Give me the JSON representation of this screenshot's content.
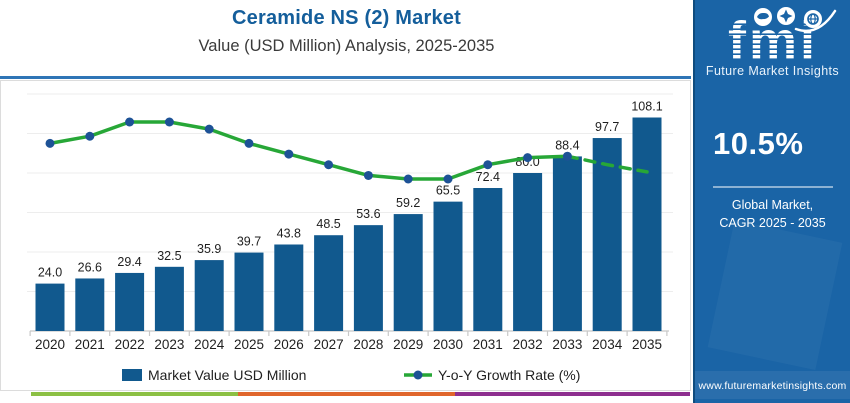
{
  "header": {
    "title": "Ceramide NS (2) Market",
    "subtitle": "Value (USD Million) Analysis, 2025-2035"
  },
  "chart_data": {
    "type": "bar",
    "title": "Ceramide NS (2) Market",
    "subtitle": "Value (USD Million) Analysis, 2025-2035",
    "categories": [
      "2020",
      "2021",
      "2022",
      "2023",
      "2024",
      "2025",
      "2026",
      "2027",
      "2028",
      "2029",
      "2030",
      "2031",
      "2032",
      "2033",
      "2034",
      "2035"
    ],
    "series": [
      {
        "name": "Market Value USD Million",
        "type": "bar",
        "values": [
          24.0,
          26.6,
          29.4,
          32.5,
          35.9,
          39.7,
          43.8,
          48.5,
          53.6,
          59.2,
          65.5,
          72.4,
          80.0,
          88.4,
          97.7,
          108.1
        ]
      },
      {
        "name": "Y-o-Y Growth Rate (%)",
        "type": "line",
        "values_estimated": [
          10.8,
          10.9,
          11.1,
          11.1,
          11.0,
          10.8,
          10.65,
          10.5,
          10.35,
          10.3,
          10.3,
          10.5,
          10.6,
          10.62,
          10.5,
          10.4
        ],
        "dashed_from_index": 13,
        "markers_through_index": 13
      }
    ],
    "ylim": [
      0,
      120
    ],
    "grid": true,
    "legend_position": "bottom",
    "value_labels": true
  },
  "legend": {
    "bar_label": "Market Value USD Million",
    "line_label": "Y-o-Y Growth Rate (%)"
  },
  "sidebar": {
    "logo_text": "fmi",
    "logo_subtext": "Future Market Insights",
    "cagr_value": "10.5%",
    "caption_line1": "Global Market,",
    "caption_line2": "CAGR 2025 - 2035",
    "website": "www.futuremarketinsights.com"
  },
  "colors": {
    "title_blue": "#145E9B",
    "rule_blue": "#2E75B6",
    "bar_fill": "#11598E",
    "line_green": "#27A737",
    "marker_blue": "#1D5296",
    "grid": "#ededed",
    "axis": "#c8c8c8",
    "label_text": "#1f1f1f",
    "strip_green": "#8CC044",
    "strip_orange": "#E0662C",
    "strip_purple": "#8E2F8F",
    "sidebar_bg": "#1A64A6"
  }
}
